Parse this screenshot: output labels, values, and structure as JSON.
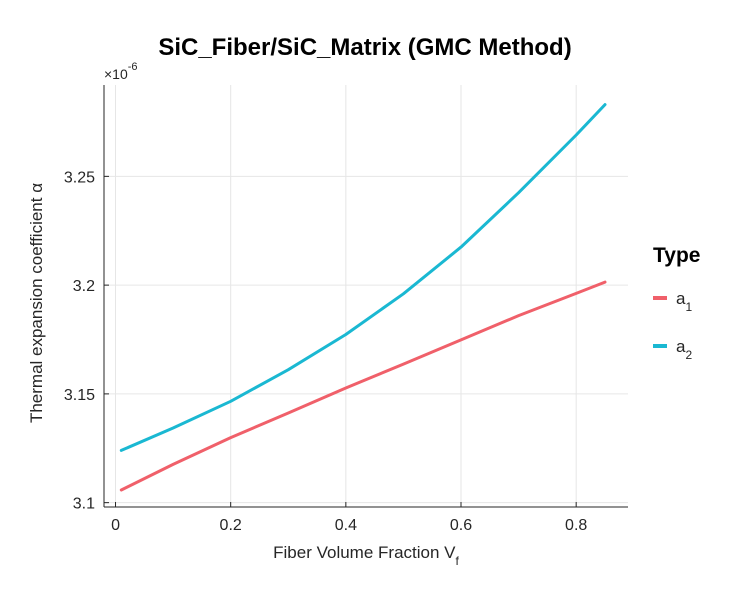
{
  "chart_data": {
    "type": "line",
    "title": "SiC_Fiber/SiC_Matrix (GMC Method)",
    "xlabel": "Fiber Volume Fraction V",
    "xlabel_subscript": "f",
    "ylabel": "Thermal expansion coefficient α",
    "y_exponent_prefix": "×10",
    "y_exponent": "-6",
    "xlim": [
      -0.02,
      0.89
    ],
    "ylim": [
      3.098,
      3.292
    ],
    "x_ticks": [
      0,
      0.2,
      0.4,
      0.6,
      0.8
    ],
    "x_tick_labels": [
      "0",
      "0.2",
      "0.4",
      "0.6",
      "0.8"
    ],
    "y_ticks": [
      3.1,
      3.15,
      3.2,
      3.25
    ],
    "y_tick_labels": [
      "3.1",
      "3.15",
      "3.2",
      "3.25"
    ],
    "grid": true,
    "legend_title": "Type",
    "legend_position": "right",
    "x": [
      0.01,
      0.1,
      0.2,
      0.3,
      0.4,
      0.5,
      0.6,
      0.7,
      0.8,
      0.85
    ],
    "series": [
      {
        "name": "a",
        "name_subscript": "1",
        "color": "#f0606a",
        "values": [
          3.1058,
          3.1176,
          3.1299,
          3.1412,
          3.1527,
          3.1637,
          3.1748,
          3.186,
          3.1962,
          3.2014
        ]
      },
      {
        "name": "a",
        "name_subscript": "2",
        "color": "#1ab8d2",
        "values": [
          3.124,
          3.1343,
          3.1466,
          3.1611,
          3.1773,
          3.196,
          3.2175,
          3.2425,
          3.269,
          3.283
        ]
      }
    ]
  }
}
